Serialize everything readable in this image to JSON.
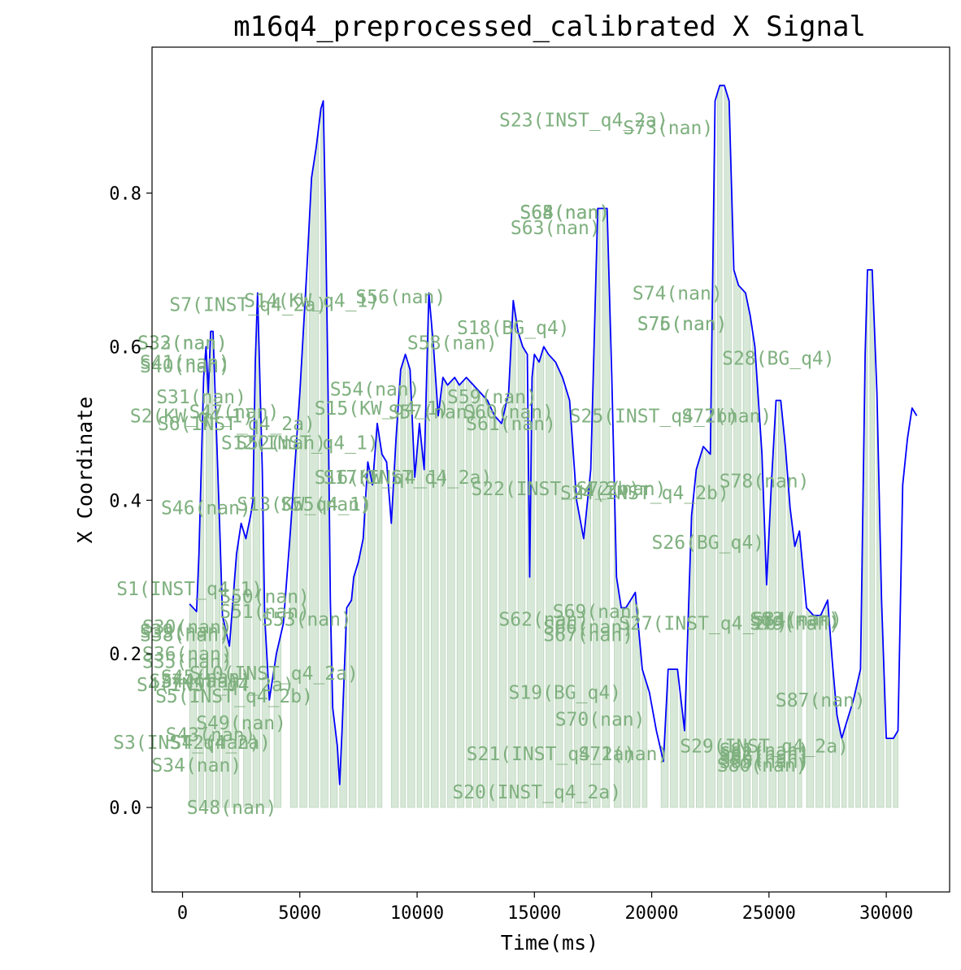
{
  "chart_data": {
    "type": "line",
    "title": "m16q4_preprocessed_calibrated X Signal",
    "xlabel": "Time(ms)",
    "ylabel": "X Coordinate",
    "xlim": [
      -1300,
      32700
    ],
    "ylim": [
      -0.11,
      0.99
    ],
    "xticks": [
      0,
      5000,
      10000,
      15000,
      20000,
      25000,
      30000
    ],
    "xtick_labels": [
      "0",
      "5000",
      "10000",
      "15000",
      "20000",
      "25000",
      "30000"
    ],
    "yticks": [
      0.0,
      0.2,
      0.4,
      0.6,
      0.8
    ],
    "ytick_labels": [
      "0.0",
      "0.2",
      "0.4",
      "0.6",
      "0.8"
    ],
    "grid": false,
    "colors": {
      "line": "#0000ff",
      "fill": "#8fbc8f",
      "label": "#7fb07f"
    },
    "series": [
      {
        "x": [
          300,
          600,
          700,
          900,
          1000,
          1100,
          1200,
          1300,
          1500,
          1600,
          1700,
          2000,
          2200,
          2300,
          2500,
          2700,
          2900,
          3000,
          3100,
          3200,
          3400,
          3500,
          3700,
          4000,
          4300,
          4600,
          5000,
          5300,
          5500,
          5700,
          5900,
          6000,
          6100,
          6200,
          6300,
          6400,
          6600,
          6700,
          6800,
          7000,
          7200,
          7300,
          7500,
          7700,
          7900,
          8100,
          8300,
          8500,
          8700,
          8900,
          9100,
          9300,
          9500,
          9700,
          9900,
          10100,
          10300,
          10500,
          10700,
          10900,
          11100,
          11300,
          11600,
          11800,
          12100,
          12400,
          12700,
          13000,
          13300,
          13600,
          13900,
          14100,
          14300,
          14500,
          14700,
          14800,
          14900,
          15000,
          15200,
          15400,
          15600,
          15900,
          16200,
          16500,
          16800,
          17100,
          17400,
          17700,
          17900,
          18100,
          18300,
          18500,
          18700,
          18900,
          19100,
          19300,
          19600,
          19900,
          20200,
          20500,
          20700,
          20900,
          21100,
          21400,
          21700,
          21900,
          22200,
          22500,
          22700,
          22900,
          23100,
          23300,
          23500,
          23700,
          24000,
          24200,
          24400,
          24700,
          24900,
          25100,
          25300,
          25500,
          25700,
          25900,
          26100,
          26300,
          26600,
          26900,
          27200,
          27500,
          27700,
          27900,
          28100,
          28300,
          28600,
          28900,
          29100,
          29200,
          29400,
          29600,
          29800,
          30000,
          30300,
          30500,
          30700,
          30900,
          31100,
          31300
        ],
        "y": [
          0.265,
          0.255,
          0.33,
          0.56,
          0.6,
          0.54,
          0.62,
          0.62,
          0.44,
          0.35,
          0.25,
          0.21,
          0.29,
          0.33,
          0.37,
          0.35,
          0.38,
          0.4,
          0.58,
          0.67,
          0.44,
          0.25,
          0.14,
          0.2,
          0.24,
          0.36,
          0.54,
          0.7,
          0.82,
          0.86,
          0.91,
          0.92,
          0.76,
          0.55,
          0.27,
          0.13,
          0.08,
          0.03,
          0.1,
          0.26,
          0.27,
          0.3,
          0.32,
          0.35,
          0.45,
          0.42,
          0.5,
          0.46,
          0.45,
          0.37,
          0.48,
          0.57,
          0.59,
          0.57,
          0.43,
          0.5,
          0.44,
          0.67,
          0.6,
          0.51,
          0.56,
          0.55,
          0.56,
          0.55,
          0.56,
          0.55,
          0.54,
          0.53,
          0.51,
          0.5,
          0.54,
          0.66,
          0.62,
          0.6,
          0.59,
          0.3,
          0.56,
          0.59,
          0.58,
          0.6,
          0.59,
          0.58,
          0.56,
          0.53,
          0.4,
          0.35,
          0.44,
          0.78,
          0.78,
          0.78,
          0.56,
          0.3,
          0.26,
          0.26,
          0.27,
          0.28,
          0.18,
          0.15,
          0.1,
          0.06,
          0.18,
          0.18,
          0.18,
          0.1,
          0.38,
          0.44,
          0.47,
          0.46,
          0.92,
          0.94,
          0.94,
          0.92,
          0.7,
          0.68,
          0.67,
          0.64,
          0.6,
          0.46,
          0.29,
          0.42,
          0.53,
          0.53,
          0.47,
          0.39,
          0.34,
          0.36,
          0.26,
          0.25,
          0.25,
          0.27,
          0.19,
          0.12,
          0.09,
          0.11,
          0.14,
          0.18,
          0.59,
          0.7,
          0.7,
          0.54,
          0.27,
          0.09,
          0.09,
          0.1,
          0.42,
          0.48,
          0.52,
          0.51
        ]
      }
    ],
    "segments": [
      [
        300,
        600
      ],
      [
        700,
        900
      ],
      [
        1000,
        1300
      ],
      [
        1400,
        1600
      ],
      [
        1700,
        2000
      ],
      [
        2100,
        2400
      ],
      [
        2600,
        2900
      ],
      [
        3000,
        3300
      ],
      [
        3400,
        3700
      ],
      [
        3900,
        4200
      ],
      [
        4600,
        4900
      ],
      [
        5000,
        5300
      ],
      [
        5400,
        5800
      ],
      [
        5900,
        6200
      ],
      [
        6300,
        6600
      ],
      [
        6700,
        7000
      ],
      [
        7100,
        7400
      ],
      [
        7500,
        7800
      ],
      [
        7900,
        8200
      ],
      [
        8300,
        8500
      ],
      [
        8900,
        9200
      ],
      [
        9300,
        9500
      ],
      [
        9600,
        9900
      ],
      [
        10000,
        10200
      ],
      [
        10300,
        10500
      ],
      [
        10600,
        10900
      ],
      [
        11000,
        11200
      ],
      [
        11300,
        11600
      ],
      [
        11700,
        12000
      ],
      [
        12100,
        12300
      ],
      [
        12400,
        12700
      ],
      [
        12800,
        13000
      ],
      [
        13100,
        13400
      ],
      [
        13500,
        13800
      ],
      [
        13900,
        14200
      ],
      [
        14300,
        14600
      ],
      [
        14700,
        15000
      ],
      [
        15100,
        15400
      ],
      [
        15500,
        15800
      ],
      [
        15900,
        16200
      ],
      [
        16300,
        16600
      ],
      [
        16700,
        17000
      ],
      [
        17100,
        17400
      ],
      [
        17500,
        17800
      ],
      [
        17900,
        18200
      ],
      [
        18400,
        18700
      ],
      [
        18800,
        19100
      ],
      [
        19200,
        19500
      ],
      [
        19600,
        19800
      ],
      [
        20400,
        20700
      ],
      [
        20800,
        21100
      ],
      [
        21200,
        21500
      ],
      [
        21600,
        21800
      ],
      [
        21900,
        22200
      ],
      [
        22300,
        22700
      ],
      [
        22800,
        23000
      ],
      [
        23100,
        23400
      ],
      [
        23500,
        23800
      ],
      [
        23900,
        24200
      ],
      [
        24300,
        24500
      ],
      [
        24600,
        24900
      ],
      [
        25000,
        25300
      ],
      [
        25400,
        25700
      ],
      [
        25800,
        26100
      ],
      [
        26200,
        26400
      ],
      [
        26600,
        26900
      ],
      [
        27000,
        27300
      ],
      [
        27400,
        27600
      ],
      [
        27700,
        28000
      ],
      [
        28100,
        28300
      ],
      [
        28400,
        28600
      ],
      [
        28700,
        28900
      ],
      [
        29000,
        29200
      ],
      [
        29300,
        29500
      ],
      [
        29600,
        29900
      ],
      [
        30000,
        30200
      ],
      [
        30300,
        30500
      ]
    ],
    "annotations": [
      {
        "text": "S1(INST_q4_1)",
        "x": 300,
        "y": 0.285
      },
      {
        "text": "S2(KW_q4_1)",
        "x": 400,
        "y": 0.51
      },
      {
        "text": "S3(INST_q4_2a)",
        "x": 400,
        "y": 0.085
      },
      {
        "text": "S4(INST_q4_2a)",
        "x": 1400,
        "y": 0.16
      },
      {
        "text": "S5(INST_q4_2b)",
        "x": 2200,
        "y": 0.145
      },
      {
        "text": "S6(INST_q4_2a)",
        "x": 2300,
        "y": 0.5
      },
      {
        "text": "S7(INST_q4_2a)",
        "x": 2800,
        "y": 0.655
      },
      {
        "text": "S10(INST_q4_2a)",
        "x": 3900,
        "y": 0.175
      },
      {
        "text": "S12(INST_q4_1)",
        "x": 5000,
        "y": 0.475
      },
      {
        "text": "S13(KW_q4_1)",
        "x": 5200,
        "y": 0.395
      },
      {
        "text": "S14(KW_q4_1)",
        "x": 5500,
        "y": 0.66
      },
      {
        "text": "S15(KW_q4_1)",
        "x": 8500,
        "y": 0.52
      },
      {
        "text": "S16(KW_q4_1)",
        "x": 8500,
        "y": 0.43
      },
      {
        "text": "S17(INST_q4_2a)",
        "x": 9600,
        "y": 0.43
      },
      {
        "text": "S18(BG_q4)",
        "x": 14100,
        "y": 0.625
      },
      {
        "text": "S19(BG_q4)",
        "x": 16300,
        "y": 0.15
      },
      {
        "text": "S20(INST_q4_2a)",
        "x": 15100,
        "y": 0.02
      },
      {
        "text": "S21(INST_q4_2a)",
        "x": 15700,
        "y": 0.07
      },
      {
        "text": "S22(INST_q4_2b)",
        "x": 15900,
        "y": 0.415
      },
      {
        "text": "S23(INST_q4_2a)",
        "x": 17100,
        "y": 0.895
      },
      {
        "text": "S24(INST_q4_2b)",
        "x": 19700,
        "y": 0.41
      },
      {
        "text": "S25(INST_q4_2b)",
        "x": 20100,
        "y": 0.51
      },
      {
        "text": "S26(BG_q4)",
        "x": 22400,
        "y": 0.345
      },
      {
        "text": "S27(INST_q4_2b)",
        "x": 22200,
        "y": 0.24
      },
      {
        "text": "S28(BG_q4)",
        "x": 25400,
        "y": 0.585
      },
      {
        "text": "S29(INST_q4_2a)",
        "x": 24800,
        "y": 0.08
      },
      {
        "text": "S30(nan)",
        "x": 200,
        "y": 0.235
      },
      {
        "text": "S31(nan)",
        "x": 800,
        "y": 0.535
      },
      {
        "text": "S32(nan)",
        "x": 0,
        "y": 0.605
      },
      {
        "text": "S33(nan)",
        "x": 0,
        "y": 0.605
      },
      {
        "text": "S34(nan)",
        "x": 600,
        "y": 0.055
      },
      {
        "text": "S35(nan)",
        "x": 200,
        "y": 0.19
      },
      {
        "text": "S36(nan)",
        "x": 200,
        "y": 0.2
      },
      {
        "text": "S37(nan)",
        "x": 500,
        "y": 0.165
      },
      {
        "text": "S38(nan)",
        "x": 100,
        "y": 0.225
      },
      {
        "text": "S39(nan)",
        "x": 100,
        "y": 0.23
      },
      {
        "text": "S40(nan)",
        "x": 100,
        "y": 0.575
      },
      {
        "text": "S41(nan)",
        "x": 100,
        "y": 0.58
      },
      {
        "text": "S42(nan)",
        "x": 1400,
        "y": 0.085
      },
      {
        "text": "S43(nan)",
        "x": 1200,
        "y": 0.095
      },
      {
        "text": "S44(nan)",
        "x": 1000,
        "y": 0.165
      },
      {
        "text": "S45(nan)",
        "x": 1000,
        "y": 0.17
      },
      {
        "text": "S46(nan)",
        "x": 1000,
        "y": 0.39
      },
      {
        "text": "S47(nan)",
        "x": 2200,
        "y": 0.515
      },
      {
        "text": "S48(nan)",
        "x": 2100,
        "y": 0.0
      },
      {
        "text": "S49(nan)",
        "x": 2500,
        "y": 0.11
      },
      {
        "text": "S50(nan)",
        "x": 3500,
        "y": 0.275
      },
      {
        "text": "S51(nan)",
        "x": 3500,
        "y": 0.255
      },
      {
        "text": "S52(nan)",
        "x": 4200,
        "y": 0.475
      },
      {
        "text": "S53(nan)",
        "x": 5300,
        "y": 0.245
      },
      {
        "text": "S54(nan)",
        "x": 8200,
        "y": 0.545
      },
      {
        "text": "S55(nan)",
        "x": 6100,
        "y": 0.395
      },
      {
        "text": "S56(nan)",
        "x": 9300,
        "y": 0.665
      },
      {
        "text": "S57(nan)",
        "x": 10700,
        "y": 0.515
      },
      {
        "text": "S58(nan)",
        "x": 11500,
        "y": 0.605
      },
      {
        "text": "S59(nan)",
        "x": 13200,
        "y": 0.535
      },
      {
        "text": "S60(nan)",
        "x": 13900,
        "y": 0.515
      },
      {
        "text": "S61(nan)",
        "x": 14000,
        "y": 0.5
      },
      {
        "text": "S62(nan)",
        "x": 15400,
        "y": 0.245
      },
      {
        "text": "S63(nan)",
        "x": 15900,
        "y": 0.755
      },
      {
        "text": "S64(nan)",
        "x": 16300,
        "y": 0.775
      },
      {
        "text": "S65(nan)",
        "x": 16300,
        "y": 0.775
      },
      {
        "text": "S66(nan)",
        "x": 17300,
        "y": 0.235
      },
      {
        "text": "S67(nan)",
        "x": 17300,
        "y": 0.225
      },
      {
        "text": "S68(nan)",
        "x": 16300,
        "y": 0.775
      },
      {
        "text": "S69(nan)",
        "x": 17700,
        "y": 0.255
      },
      {
        "text": "S70(nan)",
        "x": 17800,
        "y": 0.115
      },
      {
        "text": "S71(nan)",
        "x": 18800,
        "y": 0.07
      },
      {
        "text": "S72(nan)",
        "x": 18700,
        "y": 0.415
      },
      {
        "text": "S73(nan)",
        "x": 20700,
        "y": 0.885
      },
      {
        "text": "S74(nan)",
        "x": 21100,
        "y": 0.67
      },
      {
        "text": "S75(nan)",
        "x": 21300,
        "y": 0.63
      },
      {
        "text": "S76(nan)",
        "x": 21300,
        "y": 0.63
      },
      {
        "text": "S77(nan)",
        "x": 23200,
        "y": 0.51
      },
      {
        "text": "S78(nan)",
        "x": 24800,
        "y": 0.425
      },
      {
        "text": "S79(nan)",
        "x": 26100,
        "y": 0.24
      },
      {
        "text": "S80(nan)",
        "x": 24700,
        "y": 0.055
      },
      {
        "text": "S81(nan)",
        "x": 24800,
        "y": 0.075
      },
      {
        "text": "S82(nan)",
        "x": 24800,
        "y": 0.07
      },
      {
        "text": "S83(nan)",
        "x": 26100,
        "y": 0.245
      },
      {
        "text": "S84(nan)",
        "x": 26200,
        "y": 0.245
      },
      {
        "text": "S85(nan)",
        "x": 24800,
        "y": 0.06
      },
      {
        "text": "S86(nan)",
        "x": 24800,
        "y": 0.065
      },
      {
        "text": "S87(nan)",
        "x": 27200,
        "y": 0.14
      }
    ]
  }
}
